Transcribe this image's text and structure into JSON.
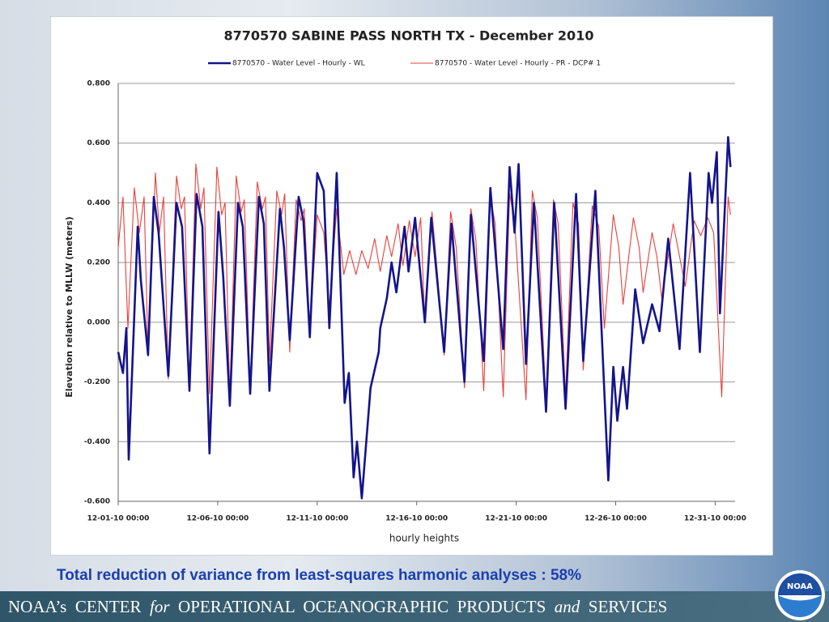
{
  "chart_data": {
    "type": "line",
    "title": "8770570  SABINE PASS NORTH TX - December 2010",
    "xlabel": "hourly heights",
    "ylabel": "Elevation relative to MLLW (meters)",
    "legend": "top",
    "grid": true,
    "xlim": [
      0,
      31
    ],
    "xticks": [
      {
        "value": 0,
        "label": "12-01-10 00:00"
      },
      {
        "value": 5,
        "label": "12-06-10 00:00"
      },
      {
        "value": 10,
        "label": "12-11-10 00:00"
      },
      {
        "value": 15,
        "label": "12-16-10 00:00"
      },
      {
        "value": 20,
        "label": "12-21-10 00:00"
      },
      {
        "value": 25,
        "label": "12-26-10 00:00"
      },
      {
        "value": 30,
        "label": "12-31-10 00:00"
      }
    ],
    "ylim": [
      -0.6,
      0.8
    ],
    "yticks": [
      {
        "value": -0.6,
        "label": "-0.600"
      },
      {
        "value": -0.4,
        "label": "-0.400"
      },
      {
        "value": -0.2,
        "label": "-0.200"
      },
      {
        "value": 0,
        "label": "0.000"
      },
      {
        "value": 0.2,
        "label": "0.200"
      },
      {
        "value": 0.4,
        "label": "0.400"
      },
      {
        "value": 0.6,
        "label": "0.600"
      },
      {
        "value": 0.8,
        "label": "0.800"
      }
    ],
    "series": [
      {
        "name": "8770570 - Water Level - Hourly - WL",
        "color": "#14148c",
        "x": [
          0,
          0.24,
          0.41,
          0.53,
          0.98,
          1.14,
          1.5,
          1.79,
          2.03,
          2.52,
          2.93,
          3.21,
          3.58,
          3.94,
          4.23,
          4.59,
          5.04,
          5.28,
          5.61,
          6.02,
          6.26,
          6.63,
          7.07,
          7.32,
          7.6,
          8.13,
          8.33,
          8.62,
          9.07,
          9.31,
          9.63,
          10.0,
          10.33,
          10.61,
          10.98,
          11.38,
          11.59,
          11.83,
          12.0,
          12.24,
          12.68,
          13.09,
          13.17,
          13.5,
          13.74,
          13.98,
          14.39,
          14.59,
          14.92,
          15.41,
          15.73,
          16.38,
          16.75,
          17.4,
          17.72,
          18.37,
          18.7,
          19.35,
          19.67,
          19.92,
          20.12,
          20.49,
          20.89,
          21.5,
          21.91,
          22.48,
          23.01,
          23.37,
          23.98,
          24.63,
          24.88,
          25.08,
          25.37,
          25.57,
          25.98,
          26.38,
          26.83,
          27.2,
          27.64,
          28.21,
          28.74,
          29.23,
          29.67,
          29.84,
          30.08,
          30.24,
          30.65,
          30.77
        ],
        "values": [
          -0.1,
          -0.17,
          -0.02,
          -0.46,
          0.32,
          0.14,
          -0.11,
          0.42,
          0.3,
          -0.18,
          0.4,
          0.32,
          -0.23,
          0.43,
          0.32,
          -0.44,
          0.37,
          0.15,
          -0.28,
          0.4,
          0.32,
          -0.24,
          0.42,
          0.33,
          -0.23,
          0.38,
          0.25,
          -0.06,
          0.42,
          0.34,
          -0.05,
          0.5,
          0.44,
          -0.02,
          0.5,
          -0.27,
          -0.17,
          -0.52,
          -0.4,
          -0.59,
          -0.22,
          -0.1,
          -0.02,
          0.08,
          0.2,
          0.1,
          0.32,
          0.17,
          0.35,
          0.0,
          0.35,
          -0.1,
          0.33,
          -0.2,
          0.36,
          -0.13,
          0.45,
          -0.09,
          0.52,
          0.3,
          0.53,
          -0.14,
          0.4,
          -0.3,
          0.4,
          -0.29,
          0.43,
          -0.13,
          0.44,
          -0.53,
          -0.15,
          -0.33,
          -0.15,
          -0.29,
          0.11,
          -0.07,
          0.06,
          -0.03,
          0.28,
          -0.09,
          0.5,
          -0.1,
          0.5,
          0.4,
          0.57,
          0.03,
          0.62,
          0.52
        ]
      },
      {
        "name": "8770570 - Water Level - Hourly - PR - DCP# 1",
        "color": "#e8403a",
        "x": [
          0,
          0.24,
          0.49,
          0.81,
          1.06,
          1.3,
          1.5,
          1.87,
          2.07,
          2.28,
          2.52,
          2.93,
          3.17,
          3.33,
          3.58,
          3.9,
          4.15,
          4.31,
          4.59,
          4.96,
          5.2,
          5.37,
          5.61,
          5.93,
          6.18,
          6.34,
          6.63,
          6.99,
          7.24,
          7.4,
          7.6,
          7.97,
          8.21,
          8.37,
          8.62,
          8.94,
          9.19,
          9.35,
          9.63,
          10.0,
          10.33,
          10.61,
          10.98,
          11.34,
          11.63,
          11.95,
          12.24,
          12.56,
          12.89,
          13.17,
          13.5,
          13.74,
          14.07,
          14.31,
          14.63,
          14.92,
          15.2,
          15.41,
          15.77,
          16.02,
          16.38,
          16.71,
          16.99,
          17.4,
          17.72,
          17.97,
          18.37,
          18.7,
          18.94,
          19.35,
          19.67,
          19.92,
          20.49,
          20.81,
          21.06,
          21.5,
          21.87,
          22.11,
          22.48,
          22.85,
          23.13,
          23.37,
          23.82,
          24.15,
          24.43,
          24.88,
          25.16,
          25.37,
          25.89,
          26.18,
          26.38,
          26.83,
          27.07,
          27.32,
          27.89,
          28.21,
          28.5,
          28.94,
          29.27,
          29.63,
          29.92,
          30.33,
          30.65,
          30.77
        ],
        "values": [
          0.25,
          0.42,
          -0.02,
          0.45,
          0.3,
          0.42,
          -0.11,
          0.5,
          0.3,
          0.42,
          -0.19,
          0.49,
          0.38,
          0.42,
          -0.23,
          0.53,
          0.38,
          0.45,
          -0.24,
          0.52,
          0.36,
          0.4,
          -0.26,
          0.49,
          0.37,
          0.41,
          -0.23,
          0.47,
          0.38,
          0.42,
          -0.13,
          0.44,
          0.36,
          0.43,
          -0.1,
          0.41,
          0.34,
          0.38,
          -0.03,
          0.36,
          0.3,
          0.05,
          0.38,
          0.16,
          0.24,
          0.16,
          0.24,
          0.18,
          0.28,
          0.17,
          0.29,
          0.22,
          0.33,
          0.19,
          0.34,
          0.22,
          0.35,
          0.0,
          0.37,
          0.18,
          -0.11,
          0.37,
          0.25,
          -0.22,
          0.38,
          0.28,
          -0.23,
          0.42,
          0.33,
          -0.25,
          0.43,
          0.34,
          -0.26,
          0.44,
          0.35,
          -0.27,
          0.41,
          0.33,
          -0.25,
          0.4,
          0.33,
          -0.16,
          0.39,
          0.32,
          -0.02,
          0.36,
          0.25,
          0.06,
          0.35,
          0.25,
          0.1,
          0.3,
          0.22,
          0.08,
          0.33,
          0.22,
          0.12,
          0.34,
          0.29,
          0.35,
          0.3,
          -0.25,
          0.42,
          0.36
        ]
      }
    ]
  },
  "caption": "Total reduction of variance from least-squares harmonic analyses : 58%",
  "footer": [
    "NOAA’s  CENTER",
    "for",
    "OPERATIONAL  OCEANOGRAPHIC  PRODUCTS",
    "and",
    "SERVICES"
  ],
  "logo": "NOAA"
}
